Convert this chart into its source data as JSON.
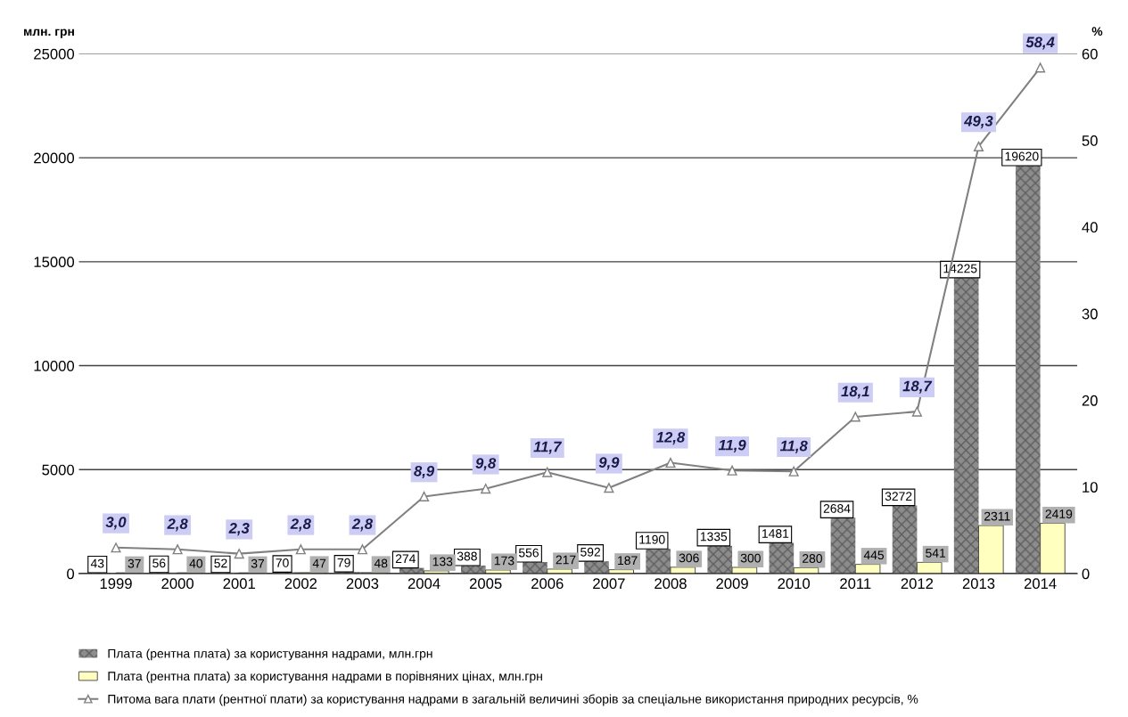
{
  "chart_data": {
    "type": "bar",
    "ylabel": "млн. грн",
    "y2label": "%",
    "categories": [
      "1999",
      "2000",
      "2001",
      "2002",
      "2003",
      "2004",
      "2005",
      "2006",
      "2007",
      "2008",
      "2009",
      "2010",
      "2011",
      "2012",
      "2013",
      "2014"
    ],
    "series": [
      {
        "name": "Плата (рентна плата) за користування надрами, млн.грн",
        "color": "#8c8c8c",
        "values": [
          43,
          56,
          52,
          70,
          79,
          274,
          388,
          556,
          592,
          1190,
          1335,
          1481,
          2684,
          3272,
          14225,
          19620
        ],
        "value_labels": [
          "43",
          "56",
          "52",
          "70",
          "79",
          "274",
          "388",
          "556",
          "592",
          "1190",
          "1335",
          "1481",
          "2684",
          "3272",
          "14225",
          "19620"
        ]
      },
      {
        "name": "Плата (рентна плата) за користування надрами в порівняних цінах, млн.грн",
        "color": "#ffffc0",
        "values": [
          37,
          40,
          37,
          47,
          48,
          133,
          173,
          217,
          187,
          306,
          300,
          280,
          445,
          541,
          2311,
          2419
        ],
        "value_labels": [
          "37",
          "40",
          "37",
          "47",
          "48",
          "133",
          "173",
          "217",
          "187",
          "306",
          "300",
          "280",
          "445",
          "541",
          "2311",
          "2419"
        ]
      },
      {
        "name": "Питома вага плати (рентної плати) за користування надрами в загальній величині зборів за спеціальне використання природних ресурсів, %",
        "type": "line",
        "axis": "y2",
        "color": "#808080",
        "values": [
          3.0,
          2.8,
          2.3,
          2.8,
          2.8,
          8.9,
          9.8,
          11.7,
          9.9,
          12.8,
          11.9,
          11.8,
          18.1,
          18.7,
          49.3,
          58.4
        ],
        "value_labels": [
          "3,0",
          "2,8",
          "2,3",
          "2,8",
          "2,8",
          "8,9",
          "9,8",
          "11,7",
          "9,9",
          "12,8",
          "11,9",
          "11,8",
          "18,1",
          "18,7",
          "49,3",
          "58,4"
        ]
      }
    ],
    "ylim": [
      0,
      25000
    ],
    "yticks": [
      0,
      5000,
      10000,
      15000,
      20000,
      25000
    ],
    "y2lim": [
      0,
      60
    ],
    "y2ticks": [
      0,
      10,
      20,
      30,
      40,
      50,
      60
    ],
    "grid": "y",
    "legend": "bottom",
    "marker": "triangle"
  }
}
